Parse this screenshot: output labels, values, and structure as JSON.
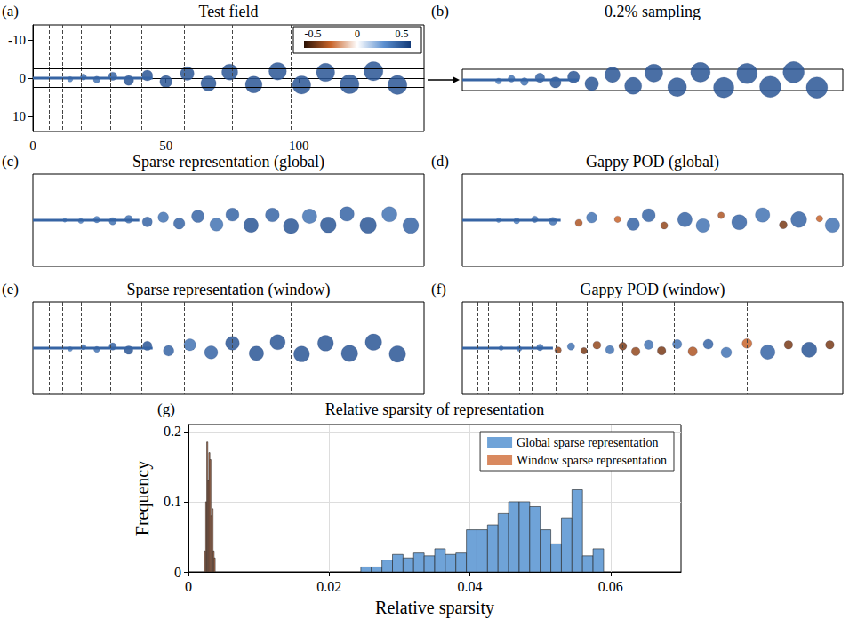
{
  "chart_data": [
    {
      "type": "field",
      "panel": "(a)",
      "title": "Test field",
      "xlim": [
        0,
        147
      ],
      "xticks": [
        0,
        50,
        100
      ],
      "ylim": [
        -14,
        14
      ],
      "yticks": [
        -10,
        0,
        10
      ],
      "colorbar": {
        "range": [
          -0.6,
          0.6
        ],
        "ticks": [
          -0.5,
          0,
          0.5
        ]
      },
      "sampling_band": [
        -2.5,
        2.5
      ],
      "windows": [
        6,
        11,
        18,
        29,
        41,
        57,
        75,
        97
      ],
      "shear_layer": [
        [
          0,
          0
        ],
        [
          45,
          0
        ]
      ],
      "vortices": [
        [
          14,
          0.3,
          0.7,
          0.35
        ],
        [
          19,
          -0.3,
          0.8,
          0.4
        ],
        [
          24,
          0.4,
          0.9,
          0.4
        ],
        [
          30,
          -0.5,
          1.1,
          0.45
        ],
        [
          36,
          0.6,
          1.3,
          0.5
        ],
        [
          43,
          -0.7,
          1.4,
          0.5
        ],
        [
          50,
          0.9,
          1.6,
          0.5
        ],
        [
          58,
          -1.2,
          1.8,
          0.5
        ],
        [
          66,
          1.4,
          2.0,
          0.5
        ],
        [
          74,
          -1.6,
          2.1,
          0.5
        ],
        [
          83,
          1.7,
          2.2,
          0.5
        ],
        [
          92,
          -1.8,
          2.3,
          0.5
        ],
        [
          101,
          1.8,
          2.4,
          0.5
        ],
        [
          110,
          -1.5,
          2.4,
          0.5
        ],
        [
          119,
          1.6,
          2.5,
          0.5
        ],
        [
          128,
          -1.8,
          2.5,
          0.5
        ],
        [
          137,
          1.8,
          2.5,
          0.5
        ]
      ]
    },
    {
      "type": "field",
      "panel": "(b)",
      "title": "0.2% sampling",
      "xlim": [
        0,
        147
      ],
      "ylim": [
        -2.5,
        2.5
      ],
      "tick_labels": false
    },
    {
      "type": "field",
      "panel": "(c)",
      "title": "Sparse representation (global)",
      "xlim": [
        0,
        147
      ],
      "ylim": [
        -14,
        14
      ],
      "tick_labels": false,
      "shear_layer": [
        [
          0,
          0
        ],
        [
          40,
          0
        ]
      ],
      "vortices": [
        [
          12,
          0,
          0.6,
          0.3
        ],
        [
          18,
          0.2,
          0.8,
          0.35
        ],
        [
          24,
          -0.2,
          1.0,
          0.35
        ],
        [
          30,
          0.3,
          1.1,
          0.4
        ],
        [
          36,
          -0.3,
          1.2,
          0.4
        ],
        [
          43,
          0.5,
          1.5,
          0.45
        ],
        [
          49,
          -0.9,
          1.6,
          0.4
        ],
        [
          55,
          1.0,
          1.7,
          0.45
        ],
        [
          62,
          -1.2,
          1.9,
          0.45
        ],
        [
          69,
          1.3,
          2.0,
          0.4
        ],
        [
          75,
          -1.7,
          2.0,
          0.45
        ],
        [
          82,
          1.5,
          2.2,
          0.5
        ],
        [
          90,
          -1.6,
          2.1,
          0.45
        ],
        [
          97,
          1.8,
          2.3,
          0.5
        ],
        [
          104,
          -1.2,
          2.2,
          0.4
        ],
        [
          111,
          1.4,
          2.4,
          0.5
        ],
        [
          118,
          -1.9,
          2.2,
          0.45
        ],
        [
          126,
          1.5,
          2.5,
          0.5
        ],
        [
          134,
          -1.8,
          2.3,
          0.4
        ],
        [
          142,
          1.6,
          2.4,
          0.45
        ]
      ]
    },
    {
      "type": "field",
      "panel": "(d)",
      "title": "Gappy POD (global)",
      "xlim": [
        0,
        147
      ],
      "ylim": [
        -14,
        14
      ],
      "tick_labels": false,
      "shear_layer": [
        [
          0,
          0
        ],
        [
          38,
          0
        ]
      ],
      "vortices": [
        [
          14,
          0,
          0.7,
          0.3
        ],
        [
          21,
          0.2,
          0.9,
          0.35
        ],
        [
          28,
          -0.3,
          1.0,
          0.4
        ],
        [
          35,
          0.3,
          1.2,
          0.4
        ],
        [
          45,
          0.8,
          1.1,
          -0.35
        ],
        [
          50,
          -0.8,
          1.6,
          0.4
        ],
        [
          60,
          -0.3,
          1.0,
          -0.3
        ],
        [
          66,
          1.2,
          1.9,
          0.45
        ],
        [
          72,
          -1.5,
          2.0,
          0.45
        ],
        [
          78,
          1.6,
          1.1,
          -0.4
        ],
        [
          86,
          -0.2,
          2.2,
          0.45
        ],
        [
          93,
          1.6,
          2.1,
          0.4
        ],
        [
          100,
          -1.5,
          1.0,
          -0.35
        ],
        [
          107,
          0.6,
          2.3,
          0.45
        ],
        [
          116,
          -1.6,
          2.2,
          0.4
        ],
        [
          124,
          1.4,
          1.2,
          -0.45
        ],
        [
          130,
          -0.2,
          2.4,
          0.45
        ],
        [
          138,
          -0.5,
          1.0,
          -0.3
        ],
        [
          143,
          1.5,
          2.2,
          0.4
        ]
      ]
    },
    {
      "type": "field",
      "panel": "(e)",
      "title": "Sparse representation (window)",
      "xlim": [
        0,
        147
      ],
      "ylim": [
        -14,
        14
      ],
      "tick_labels": false,
      "windows": [
        6,
        11,
        18,
        29,
        41,
        57,
        75,
        97
      ],
      "shear_layer": [
        [
          0,
          0
        ],
        [
          45,
          0
        ]
      ],
      "vortices": [
        [
          14,
          0.3,
          0.7,
          0.35
        ],
        [
          19,
          -0.3,
          0.8,
          0.4
        ],
        [
          24,
          0.4,
          0.9,
          0.4
        ],
        [
          30,
          -0.5,
          1.1,
          0.45
        ],
        [
          36,
          0.6,
          1.3,
          0.5
        ],
        [
          43,
          -0.7,
          1.4,
          0.5
        ],
        [
          51,
          0.8,
          1.6,
          0.45
        ],
        [
          59,
          -1.0,
          1.8,
          0.4
        ],
        [
          67,
          1.3,
          2.0,
          0.45
        ],
        [
          75,
          -1.5,
          2.1,
          0.5
        ],
        [
          84,
          1.6,
          2.2,
          0.5
        ],
        [
          92,
          -1.8,
          2.3,
          0.5
        ],
        [
          101,
          1.8,
          2.4,
          0.5
        ],
        [
          110,
          -1.5,
          2.4,
          0.5
        ],
        [
          119,
          1.6,
          2.5,
          0.5
        ],
        [
          128,
          -1.8,
          2.5,
          0.5
        ],
        [
          137,
          1.8,
          2.5,
          0.5
        ]
      ]
    },
    {
      "type": "field",
      "panel": "(f)",
      "title": "Gappy POD (window)",
      "xlim": [
        0,
        147
      ],
      "ylim": [
        -14,
        14
      ],
      "tick_labels": false,
      "windows": [
        6,
        10,
        15,
        22,
        27,
        36,
        48,
        62,
        82,
        110
      ],
      "shear_layer": [
        [
          0,
          0
        ],
        [
          35,
          0
        ]
      ],
      "vortices": [
        [
          15,
          0,
          0.7,
          0.35
        ],
        [
          22,
          0.2,
          0.8,
          0.35
        ],
        [
          30,
          -0.2,
          1.0,
          0.4
        ],
        [
          37,
          0.6,
          1.0,
          -0.4
        ],
        [
          42,
          -0.5,
          1.1,
          0.4
        ],
        [
          47,
          0.8,
          1.0,
          -0.45
        ],
        [
          52,
          -0.9,
          1.2,
          -0.4
        ],
        [
          57,
          0.5,
          1.3,
          0.4
        ],
        [
          62,
          -0.6,
          1.2,
          -0.45
        ],
        [
          67,
          1.0,
          1.3,
          -0.4
        ],
        [
          72,
          -1.0,
          1.4,
          0.4
        ],
        [
          77,
          0.8,
          1.3,
          -0.45
        ],
        [
          83,
          -1.2,
          1.4,
          0.4
        ],
        [
          89,
          1.0,
          1.4,
          -0.35
        ],
        [
          95,
          -1.2,
          1.5,
          0.45
        ],
        [
          102,
          1.3,
          1.6,
          0.4
        ],
        [
          110,
          -1.4,
          1.5,
          -0.3
        ],
        [
          118,
          1.2,
          2.2,
          0.45
        ],
        [
          126,
          -1.0,
          1.3,
          -0.45
        ],
        [
          134,
          0.5,
          2.3,
          0.5
        ],
        [
          142,
          -1.0,
          1.3,
          -0.45
        ]
      ]
    },
    {
      "type": "histogram",
      "panel": "(g)",
      "title": "Relative sparsity of representation",
      "x_label": "Relative sparsity",
      "y_label": "Frequency",
      "xlim": [
        0,
        0.07
      ],
      "xticks": [
        0,
        0.02,
        0.04,
        0.06
      ],
      "ylim": [
        0,
        0.21
      ],
      "yticks": [
        0,
        0.1,
        0.2
      ],
      "grid": true,
      "legend": "upper right",
      "series": [
        {
          "name": "Global sparse representation",
          "color": "#6fa3d8",
          "bins": [
            0.0245,
            0.026,
            0.0275,
            0.029,
            0.0305,
            0.032,
            0.0335,
            0.035,
            0.0365,
            0.038,
            0.0395,
            0.041,
            0.0425,
            0.044,
            0.0455,
            0.047,
            0.0485,
            0.05,
            0.0515,
            0.053,
            0.0545,
            0.056,
            0.0575,
            0.059
          ],
          "values": [
            0.007,
            0.007,
            0.017,
            0.025,
            0.02,
            0.027,
            0.023,
            0.033,
            0.025,
            0.027,
            0.06,
            0.06,
            0.067,
            0.083,
            0.1,
            0.1,
            0.093,
            0.06,
            0.04,
            0.077,
            0.117,
            0.023,
            0.033
          ]
        },
        {
          "name": "Window sparse representation",
          "color": "#d9895f",
          "bins": [
            0.0023,
            0.00245,
            0.0026,
            0.00275,
            0.0029,
            0.00305,
            0.0032,
            0.00335,
            0.0035,
            0.00365,
            0.0038
          ],
          "values": [
            0.03,
            0.1,
            0.185,
            0.13,
            0.17,
            0.16,
            0.08,
            0.09,
            0.03,
            0.02
          ]
        }
      ]
    }
  ]
}
